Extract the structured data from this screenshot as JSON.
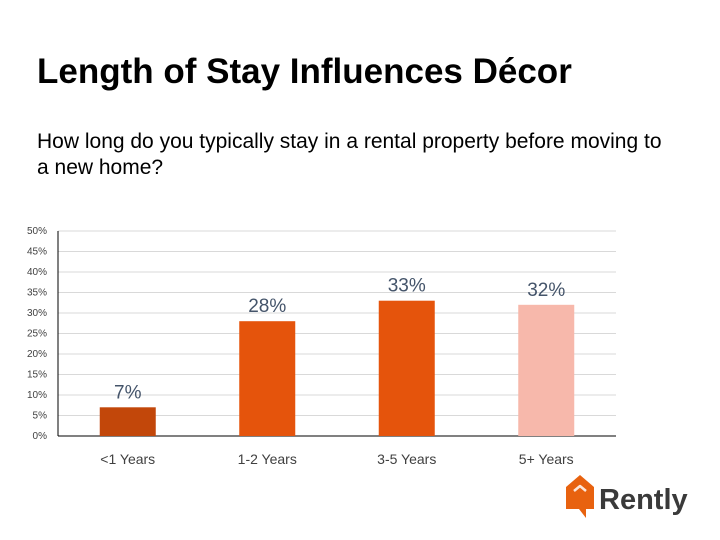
{
  "slide": {
    "title": "Length of Stay Influences Décor",
    "subtitle": "How long do you typically stay in a rental property before moving to a new home?"
  },
  "logo": {
    "text": "Rently",
    "icon": "house-icon",
    "color": "#e8620f",
    "text_color": "#3a3a3a"
  },
  "chart_data": {
    "type": "bar",
    "categories": [
      "<1 Years",
      "1-2 Years",
      "3-5 Years",
      "5+ Years"
    ],
    "values": [
      7,
      28,
      33,
      32
    ],
    "data_labels": [
      "7%",
      "28%",
      "33%",
      "32%"
    ],
    "colors": [
      "#c2470a",
      "#e5540c",
      "#e5540c",
      "#f7b8ab"
    ],
    "ylim": [
      0,
      50
    ],
    "yticks": [
      0,
      5,
      10,
      15,
      20,
      25,
      30,
      35,
      40,
      45,
      50
    ],
    "ytick_labels": [
      "0%",
      "5%",
      "10%",
      "15%",
      "20%",
      "25%",
      "30%",
      "35%",
      "40%",
      "45%",
      "50%"
    ],
    "grid": true,
    "title": "",
    "xlabel": "",
    "ylabel": ""
  }
}
